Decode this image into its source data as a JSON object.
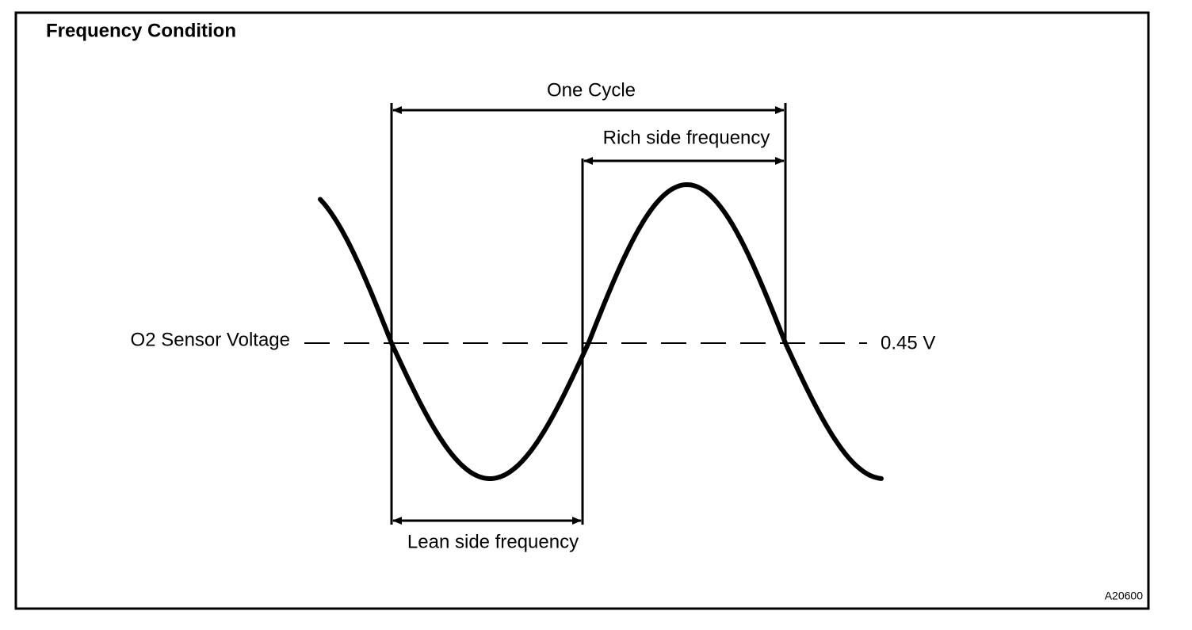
{
  "title": "Frequency Condition",
  "labels": {
    "one_cycle": "One Cycle",
    "rich_side": "Rich side frequency",
    "lean_side": "Lean side frequency",
    "axis": "O2 Sensor Voltage",
    "threshold": "0.45 V"
  },
  "figure_code": "A20600"
}
